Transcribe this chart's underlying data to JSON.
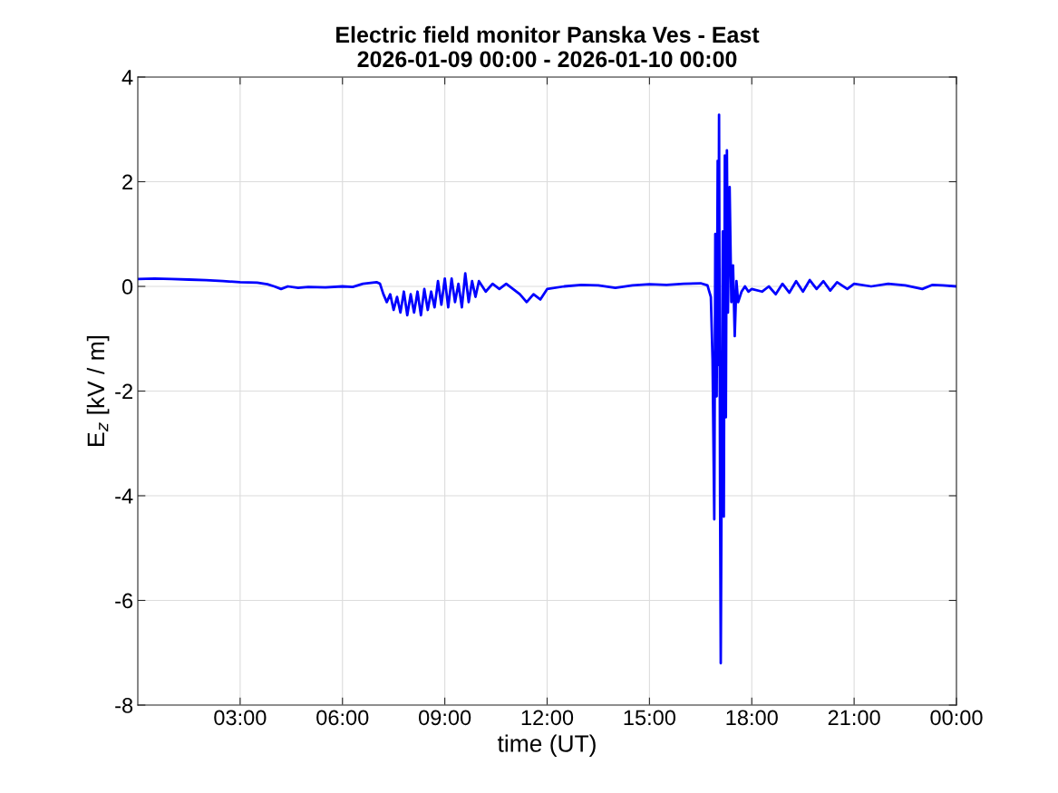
{
  "chart_data": {
    "type": "line",
    "title": "Electric field monitor Panska Ves - East\n2026-01-09 00:00 - 2026-01-10 00:00",
    "xlabel": "time (UT)",
    "ylabel": "E$_{z}$ [kV / m]",
    "x": [
      0,
      0.5,
      1,
      1.5,
      2,
      2.5,
      3,
      3.5,
      3.8,
      4,
      4.2,
      4.4,
      4.7,
      5,
      5.5,
      6,
      6.3,
      6.6,
      7.0,
      7.1,
      7.2,
      7.3,
      7.4,
      7.5,
      7.6,
      7.7,
      7.8,
      7.9,
      8.0,
      8.1,
      8.2,
      8.3,
      8.4,
      8.5,
      8.6,
      8.7,
      8.8,
      8.9,
      9.0,
      9.1,
      9.2,
      9.3,
      9.4,
      9.5,
      9.6,
      9.7,
      9.8,
      9.9,
      10.0,
      10.2,
      10.4,
      10.6,
      10.8,
      11.0,
      11.2,
      11.4,
      11.6,
      11.8,
      12.0,
      12.5,
      13,
      13.5,
      14,
      14.5,
      15,
      15.5,
      16,
      16.5,
      16.7,
      16.8,
      16.85,
      16.9,
      16.93,
      16.97,
      17.0,
      17.02,
      17.04,
      17.07,
      17.09,
      17.12,
      17.15,
      17.18,
      17.21,
      17.24,
      17.27,
      17.3,
      17.35,
      17.4,
      17.45,
      17.5,
      17.55,
      17.6,
      17.7,
      17.8,
      17.9,
      18.0,
      18.3,
      18.5,
      18.7,
      18.9,
      19.1,
      19.3,
      19.5,
      19.7,
      19.9,
      20.1,
      20.3,
      20.5,
      20.8,
      21,
      21.5,
      22,
      22.5,
      23,
      23.3,
      23.6,
      24
    ],
    "series": [
      {
        "color": "#0000ff",
        "values": [
          0.14,
          0.15,
          0.14,
          0.13,
          0.12,
          0.1,
          0.08,
          0.07,
          0.04,
          0.0,
          -0.05,
          0.0,
          -0.03,
          -0.01,
          -0.02,
          0.0,
          -0.01,
          0.05,
          0.08,
          0.05,
          -0.15,
          -0.3,
          -0.15,
          -0.45,
          -0.2,
          -0.5,
          -0.1,
          -0.55,
          -0.15,
          -0.5,
          -0.1,
          -0.55,
          -0.05,
          -0.45,
          -0.1,
          -0.4,
          0.1,
          -0.35,
          0.15,
          -0.4,
          0.15,
          -0.3,
          0.05,
          -0.4,
          0.25,
          -0.3,
          0.1,
          -0.2,
          0.1,
          -0.1,
          0.05,
          -0.05,
          0.05,
          -0.05,
          -0.15,
          -0.3,
          -0.15,
          -0.25,
          -0.05,
          0.0,
          0.03,
          0.02,
          -0.03,
          0.02,
          0.04,
          0.03,
          0.05,
          0.06,
          0.02,
          -0.2,
          -1.4,
          -4.45,
          1.0,
          -2.1,
          2.4,
          -1.5,
          3.28,
          -4.0,
          -7.2,
          -3.0,
          1.05,
          -4.4,
          2.5,
          -2.5,
          2.6,
          -0.5,
          1.9,
          -0.3,
          0.4,
          -0.95,
          0.1,
          -0.3,
          -0.1,
          0.0,
          -0.1,
          -0.05,
          -0.1,
          0.0,
          -0.15,
          0.05,
          -0.12,
          0.1,
          -0.1,
          0.12,
          -0.05,
          0.1,
          -0.08,
          0.08,
          -0.05,
          0.05,
          0.0,
          0.05,
          0.02,
          -0.05,
          0.03,
          0.02,
          0.0
        ]
      }
    ],
    "xlim": [
      0,
      24
    ],
    "xticks": [
      {
        "value": 3,
        "label": "03:00"
      },
      {
        "value": 6,
        "label": "06:00"
      },
      {
        "value": 9,
        "label": "09:00"
      },
      {
        "value": 12,
        "label": "12:00"
      },
      {
        "value": 15,
        "label": "15:00"
      },
      {
        "value": 18,
        "label": "18:00"
      },
      {
        "value": 21,
        "label": "21:00"
      },
      {
        "value": 24,
        "label": "00:00"
      }
    ],
    "ylim": [
      -8,
      4
    ],
    "yticks": [
      -8,
      -6,
      -4,
      -2,
      0,
      2,
      4
    ],
    "grid": true,
    "legend": false,
    "marker": "none",
    "line_style": "solid"
  }
}
